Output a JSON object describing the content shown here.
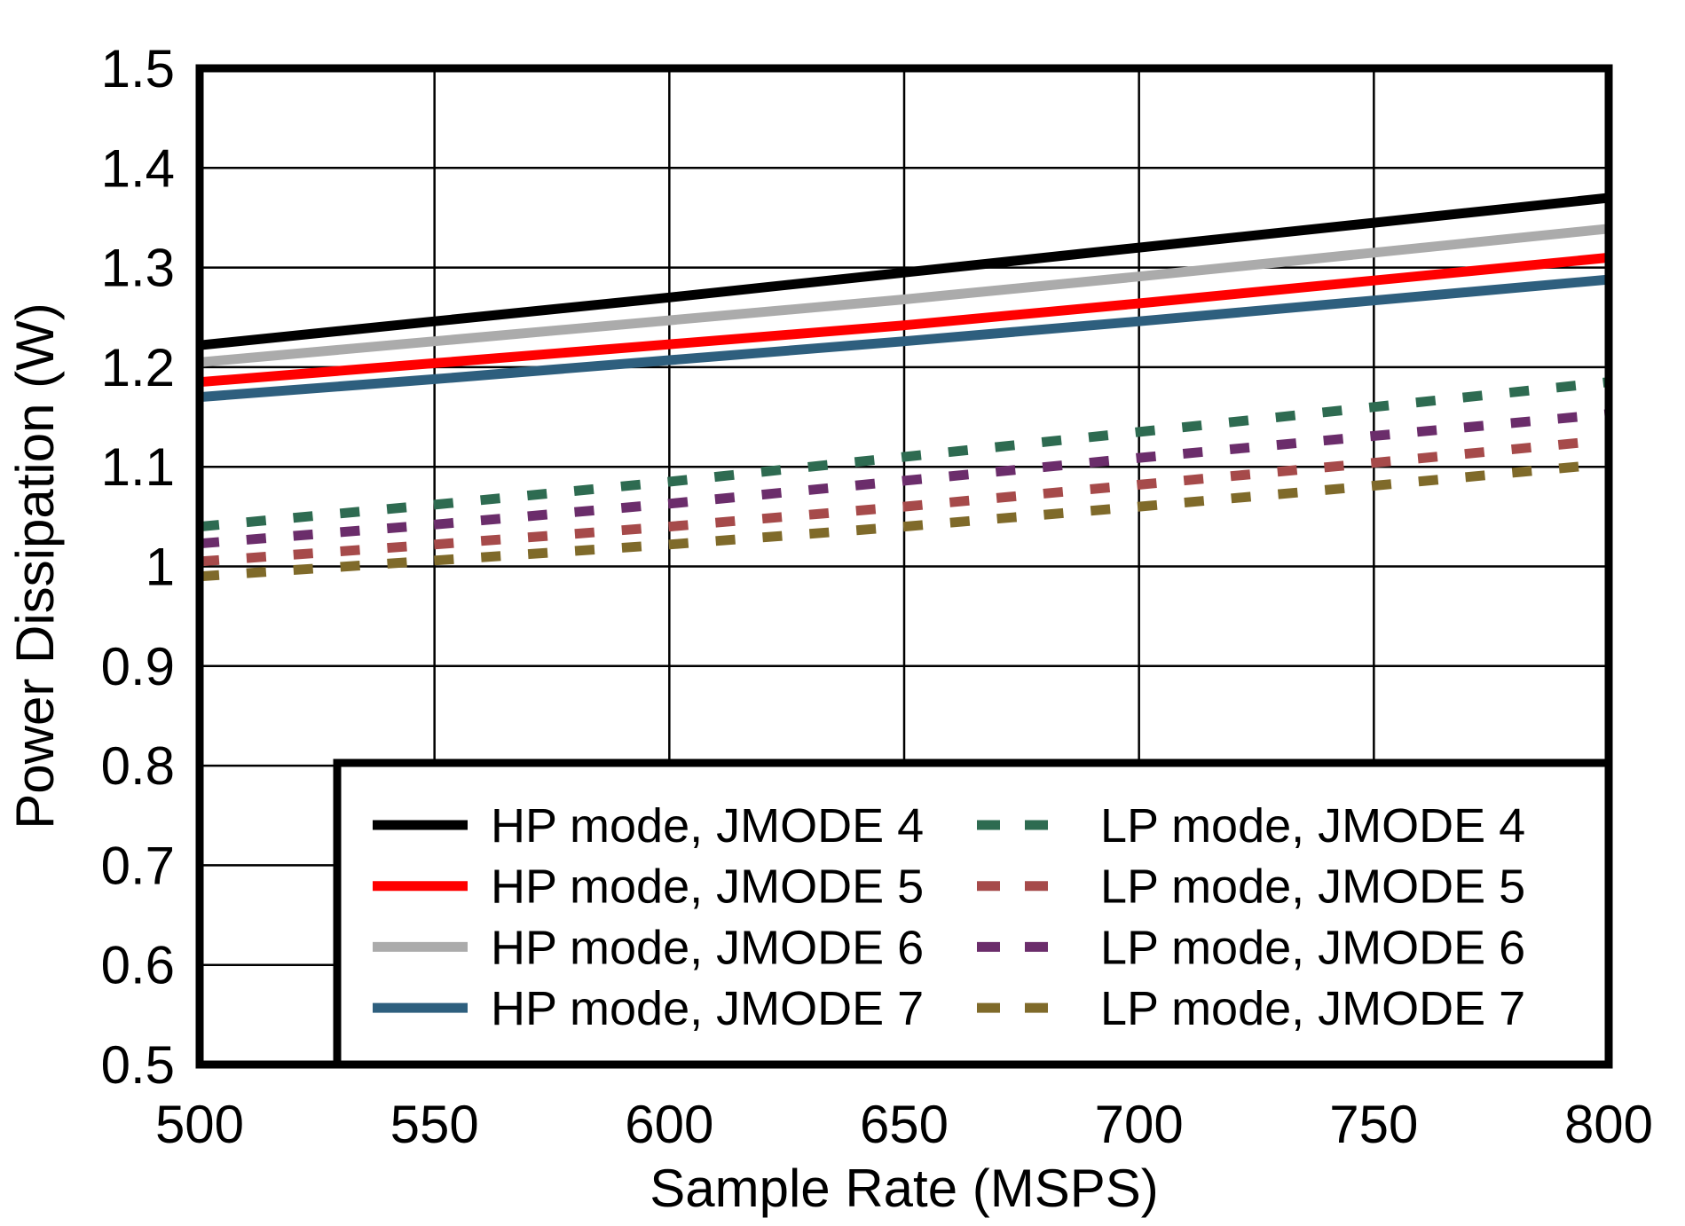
{
  "chart_data": {
    "type": "line",
    "title": "",
    "xlabel": "Sample Rate (MSPS)",
    "ylabel": "Power Dissipation (W)",
    "xlim": [
      500,
      800
    ],
    "ylim": [
      0.5,
      1.5
    ],
    "grid": true,
    "x_ticks": [
      500,
      550,
      600,
      650,
      700,
      750,
      800
    ],
    "x_tick_labels": [
      "500",
      "550",
      "600",
      "650",
      "700",
      "750",
      "800"
    ],
    "y_ticks": [
      0.5,
      0.6,
      0.7,
      0.8,
      0.9,
      1.0,
      1.1,
      1.2,
      1.3,
      1.4,
      1.5
    ],
    "y_tick_labels": [
      "0.5",
      "0.6",
      "0.7",
      "0.8",
      "0.9",
      "1",
      "1.1",
      "1.2",
      "1.3",
      "1.4",
      "1.5"
    ],
    "x": [
      500,
      550,
      600,
      650,
      700,
      750,
      800
    ],
    "series": [
      {
        "name": "HP mode, JMODE 4",
        "color": "#000000",
        "style": "solid",
        "values": [
          1.222,
          1.246,
          1.27,
          1.295,
          1.32,
          1.345,
          1.37
        ]
      },
      {
        "name": "HP mode, JMODE 5",
        "color": "#FF0000",
        "style": "solid",
        "values": [
          1.185,
          1.204,
          1.223,
          1.242,
          1.264,
          1.287,
          1.31
        ]
      },
      {
        "name": "HP mode, JMODE 6",
        "color": "#ABABAB",
        "style": "solid",
        "values": [
          1.205,
          1.226,
          1.247,
          1.268,
          1.291,
          1.315,
          1.339
        ]
      },
      {
        "name": "HP mode, JMODE 7",
        "color": "#2E5F7E",
        "style": "solid",
        "values": [
          1.17,
          1.188,
          1.207,
          1.226,
          1.246,
          1.267,
          1.288
        ]
      },
      {
        "name": "LP mode, JMODE 4",
        "color": "#2E6B51",
        "style": "dashed",
        "values": [
          1.04,
          1.062,
          1.085,
          1.11,
          1.135,
          1.16,
          1.185
        ]
      },
      {
        "name": "LP mode, JMODE 5",
        "color": "#A64A4A",
        "style": "dashed",
        "values": [
          1.005,
          1.022,
          1.04,
          1.06,
          1.082,
          1.104,
          1.127
        ]
      },
      {
        "name": "LP mode, JMODE 6",
        "color": "#6B2D6B",
        "style": "dashed",
        "values": [
          1.023,
          1.042,
          1.063,
          1.086,
          1.109,
          1.131,
          1.153
        ]
      },
      {
        "name": "LP mode, JMODE 7",
        "color": "#7F6A2A",
        "style": "dashed",
        "values": [
          0.99,
          1.006,
          1.022,
          1.04,
          1.06,
          1.081,
          1.103
        ]
      }
    ],
    "legend": {
      "position": "inside-bottom",
      "columns": [
        [
          "HP mode, JMODE 4",
          "HP mode, JMODE 5",
          "HP mode, JMODE 6",
          "HP mode, JMODE 7"
        ],
        [
          "LP mode, JMODE 4",
          "LP mode, JMODE 5",
          "LP mode, JMODE 6",
          "LP mode, JMODE 7"
        ]
      ]
    },
    "axis_color": "#000000",
    "grid_color": "#000000",
    "background_color": "#FFFFFF"
  }
}
